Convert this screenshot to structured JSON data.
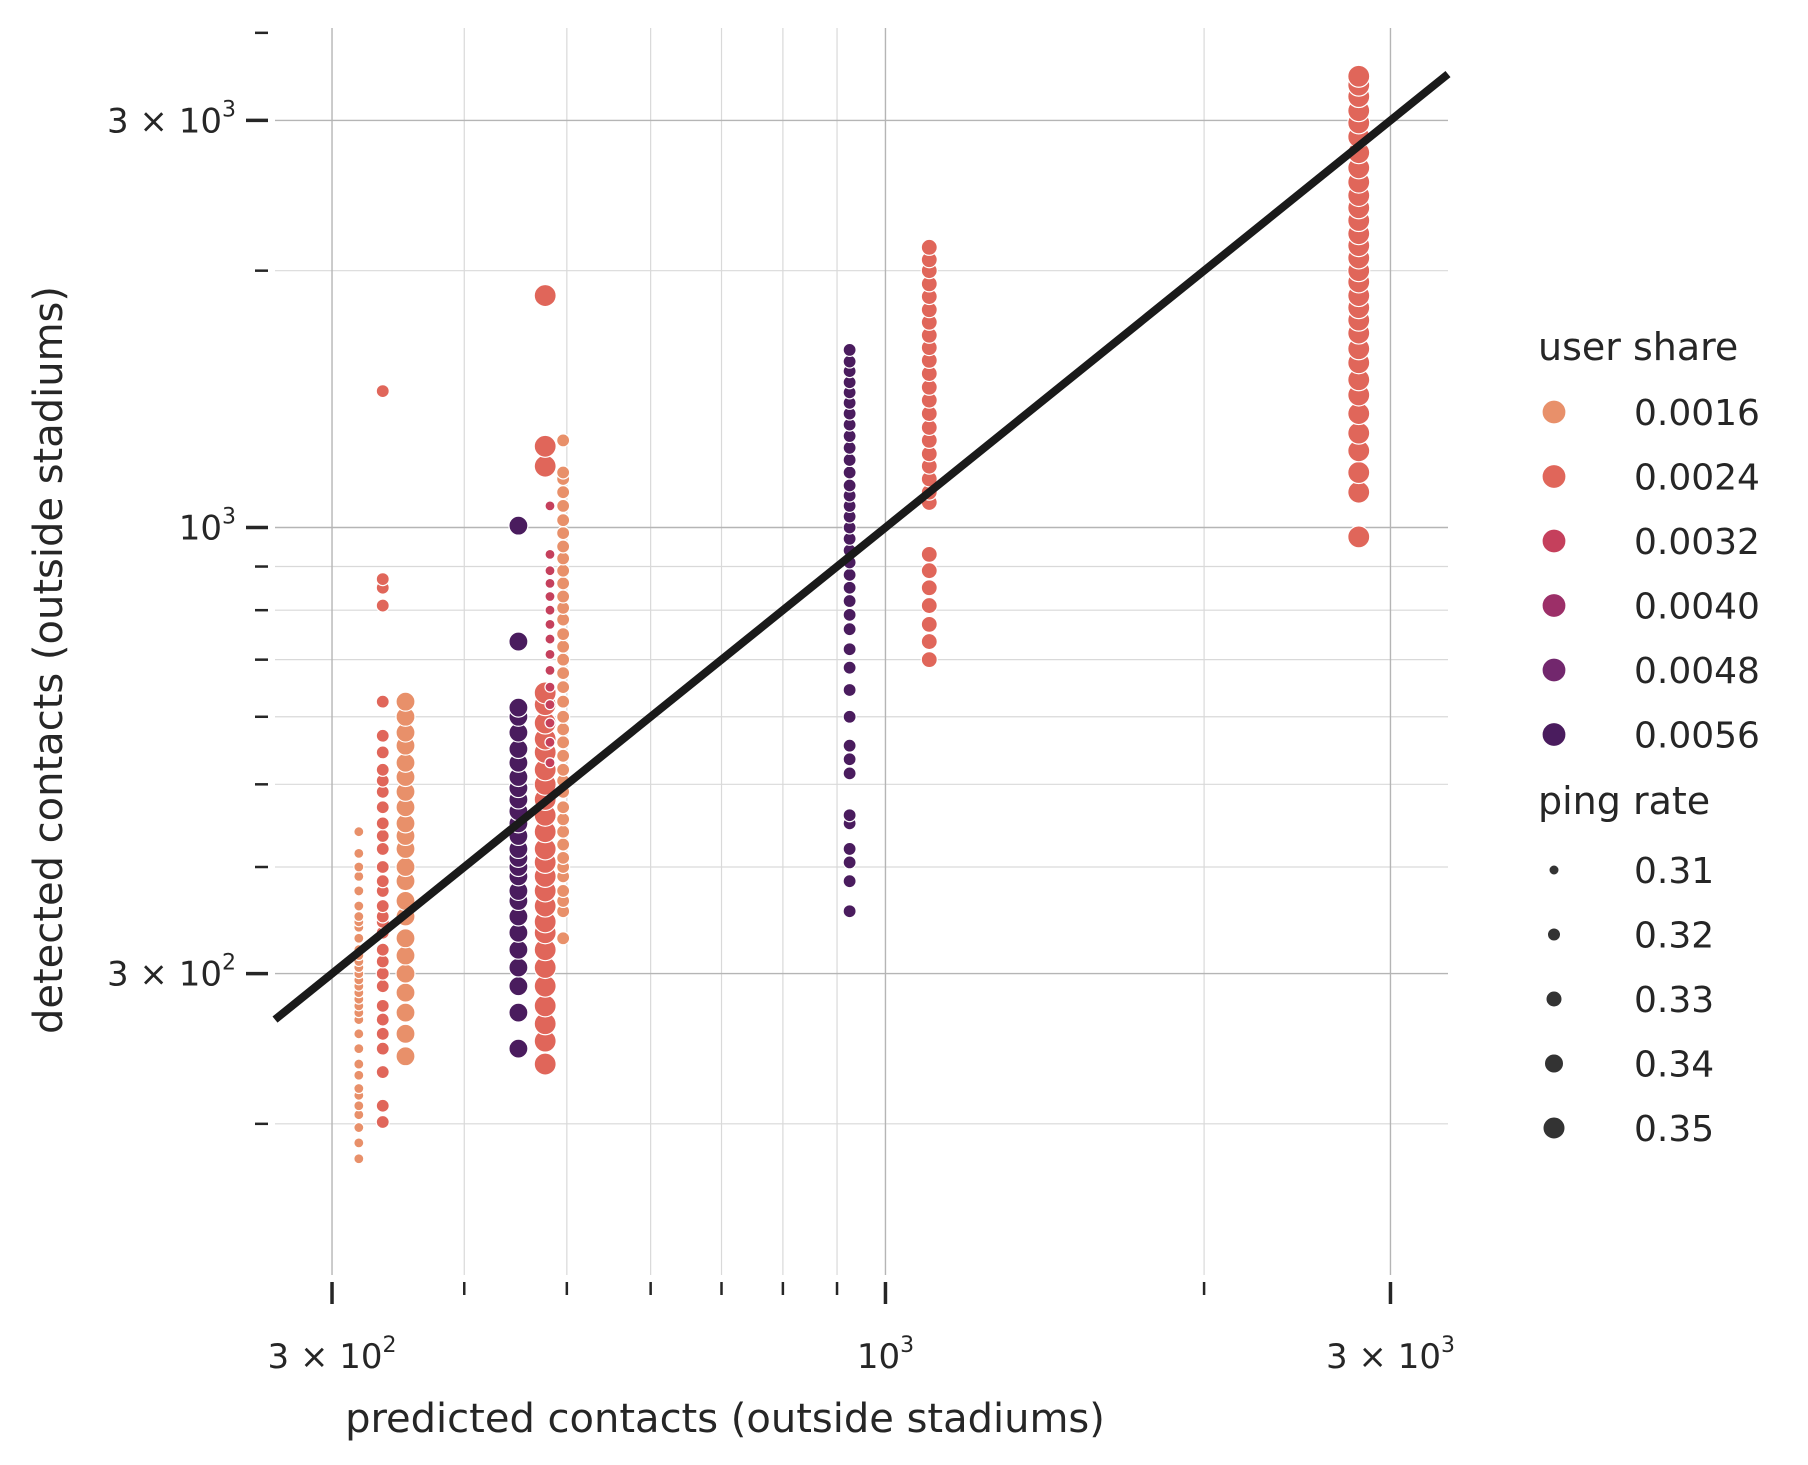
{
  "chart_data": {
    "type": "scatter",
    "xlabel": "predicted contacts (outside stadiums)",
    "ylabel": "detected contacts (outside stadiums)",
    "xscale": "log",
    "yscale": "log",
    "xlim": [
      265,
      3400
    ],
    "ylim": [
      133,
      3850
    ],
    "grid": true,
    "x_ticks": [
      {
        "value": 300,
        "label": "3 × 10^2"
      },
      {
        "value": 1000,
        "label": "10^3"
      },
      {
        "value": 3000,
        "label": "3 × 10^3"
      }
    ],
    "y_ticks": [
      {
        "value": 300,
        "label": "3 × 10^2"
      },
      {
        "value": 1000,
        "label": "10^3"
      },
      {
        "value": 3000,
        "label": "3 × 10^3"
      }
    ],
    "legend": {
      "placement": "right",
      "hue_title": "user share",
      "hue_entries": [
        {
          "label": "0.0016",
          "color": "#e8906a"
        },
        {
          "label": "0.0024",
          "color": "#e0665a"
        },
        {
          "label": "0.0032",
          "color": "#c5405c"
        },
        {
          "label": "0.0040",
          "color": "#9c2f68"
        },
        {
          "label": "0.0048",
          "color": "#72276d"
        },
        {
          "label": "0.0056",
          "color": "#4a1c5e"
        }
      ],
      "size_title": "ping rate",
      "size_entries": [
        {
          "label": "0.31",
          "size": 0.31
        },
        {
          "label": "0.32",
          "size": 0.32
        },
        {
          "label": "0.33",
          "size": 0.33
        },
        {
          "label": "0.34",
          "size": 0.34
        },
        {
          "label": "0.35",
          "size": 0.35
        }
      ]
    },
    "reference_line": {
      "x": [
        265,
        3400
      ],
      "y": [
        265,
        3400
      ],
      "color": "#1a1a1a"
    },
    "groups": [
      {
        "x": 318,
        "user_share": 0.0016,
        "ping_rate": 0.31,
        "y": [
          182,
          190,
          198,
          205,
          210,
          216,
          220,
          228,
          235,
          245,
          255,
          265,
          270,
          275,
          280,
          285,
          290,
          295,
          300,
          305,
          310,
          315,
          320,
          330,
          340,
          345,
          350,
          360,
          375,
          390,
          400,
          415,
          440
        ]
      },
      {
        "x": 335,
        "user_share": 0.0024,
        "ping_rate": 0.32,
        "y": [
          201,
          210,
          230,
          245,
          255,
          265,
          275,
          290,
          300,
          310,
          320,
          335,
          345,
          350,
          360,
          375,
          385,
          400,
          420,
          435,
          450,
          470,
          490,
          505,
          520,
          545,
          570,
          625,
          810,
          850,
          870,
          1445
        ]
      },
      {
        "x": 352,
        "user_share": 0.0016,
        "ping_rate": 0.34,
        "y": [
          240,
          255,
          270,
          285,
          300,
          315,
          330,
          350,
          365,
          385,
          400,
          420,
          435,
          450,
          470,
          490,
          510,
          530,
          555,
          575,
          600,
          625
        ]
      },
      {
        "x": 450,
        "user_share": 0.0056,
        "ping_rate": 0.34,
        "y": [
          245,
          270,
          290,
          305,
          320,
          335,
          350,
          365,
          375,
          390,
          400,
          410,
          420,
          435,
          450,
          465,
          480,
          495,
          510,
          530,
          550,
          575,
          600,
          615,
          735,
          1005
        ]
      },
      {
        "x": 477,
        "user_share": 0.0024,
        "ping_rate": 0.35,
        "y": [
          235,
          250,
          262,
          275,
          290,
          305,
          320,
          335,
          345,
          360,
          375,
          390,
          405,
          420,
          440,
          460,
          480,
          500,
          520,
          545,
          565,
          590,
          620,
          640,
          1180,
          1245,
          1870
        ]
      },
      {
        "x": 482,
        "user_share": 0.0032,
        "ping_rate": 0.31,
        "y": [
          530,
          560,
          590,
          620,
          650,
          680,
          710,
          740,
          770,
          800,
          830,
          860,
          890,
          930,
          1060
        ]
      },
      {
        "x": 496,
        "user_share": 0.0016,
        "ping_rate": 0.32,
        "y": [
          330,
          355,
          365,
          375,
          390,
          400,
          410,
          425,
          440,
          455,
          470,
          490,
          505,
          520,
          540,
          560,
          580,
          600,
          625,
          650,
          675,
          700,
          725,
          750,
          780,
          805,
          830,
          860,
          890,
          920,
          950,
          985,
          1020,
          1060,
          1100,
          1140,
          1160,
          1265
        ]
      },
      {
        "x": 925,
        "user_share": 0.0056,
        "ping_rate": 0.32,
        "y": [
          355,
          385,
          405,
          420,
          450,
          460,
          515,
          535,
          555,
          600,
          645,
          685,
          720,
          760,
          790,
          820,
          850,
          880,
          910,
          940,
          970,
          1000,
          1030,
          1060,
          1090,
          1120,
          1160,
          1200,
          1240,
          1280,
          1320,
          1360,
          1400,
          1440,
          1480,
          1525,
          1565,
          1615
        ]
      },
      {
        "x": 1100,
        "user_share": 0.0024,
        "ping_rate": 0.33,
        "y": [
          700,
          735,
          770,
          810,
          850,
          890,
          930,
          1070,
          1100,
          1140,
          1180,
          1220,
          1265,
          1310,
          1360,
          1410,
          1460,
          1515,
          1570,
          1625,
          1680,
          1740,
          1800,
          1865,
          1930,
          2000,
          2060,
          2130
        ]
      },
      {
        "x": 2800,
        "user_share": 0.0024,
        "ping_rate": 0.35,
        "y": [
          975,
          1100,
          1160,
          1230,
          1290,
          1360,
          1430,
          1490,
          1560,
          1620,
          1690,
          1750,
          1810,
          1870,
          1940,
          2000,
          2070,
          2140,
          2210,
          2290,
          2370,
          2450,
          2540,
          2640,
          2750,
          2870,
          2980,
          3080,
          3200,
          3300,
          3380
        ]
      }
    ]
  }
}
